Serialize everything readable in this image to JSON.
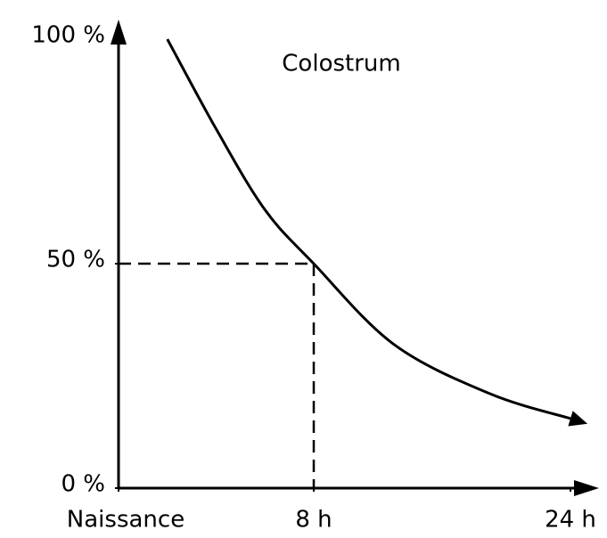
{
  "chart_data": {
    "type": "line",
    "series": [
      {
        "name": "Colostrum",
        "color": "#000000",
        "x": [
          2,
          4,
          6,
          8,
          13,
          19,
          24
        ],
        "values": [
          100,
          80,
          62,
          50,
          32,
          21,
          15.5
        ]
      }
    ],
    "xticks": [
      {
        "value": 0,
        "label": "Naissance"
      },
      {
        "value": 8,
        "label": "8 h"
      },
      {
        "value": 24,
        "label": "24 h"
      }
    ],
    "ylim": [
      0,
      100
    ],
    "yticks": [
      {
        "value": 0,
        "label": "0 %"
      },
      {
        "value": 50,
        "label": "50 %"
      },
      {
        "value": 100,
        "label": "100 %"
      }
    ],
    "reference": {
      "x": 8,
      "y": 50
    }
  }
}
